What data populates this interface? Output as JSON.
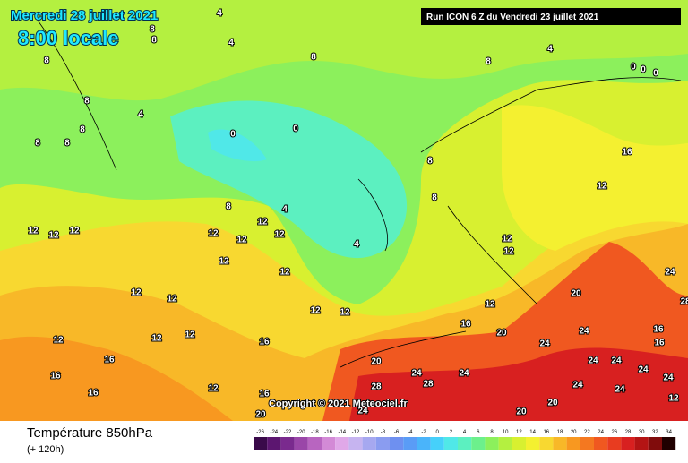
{
  "map": {
    "date_title": "Mercredi 28 juillet 2021",
    "time_title": "8:00 locale",
    "run_label": "Run ICON 6 Z du Vendredi 23 juillet 2021",
    "copyright": "Copyright © 2021 Meteociel.fr",
    "field_title": "Température 850hPa",
    "lead_time": "(+ 120h)",
    "contour_labels": [
      4,
      4,
      8,
      8,
      8,
      8,
      4,
      8,
      8,
      8,
      8,
      8,
      4,
      0,
      0,
      0,
      0,
      0,
      8,
      8,
      4,
      4,
      8,
      16,
      12,
      12,
      12,
      12,
      12,
      12,
      12,
      12,
      12,
      12,
      12,
      12,
      12,
      12,
      12,
      12,
      12,
      16,
      12,
      12,
      12,
      16,
      16,
      16,
      16,
      12,
      16,
      20,
      20,
      24,
      24,
      20,
      24,
      24,
      28,
      28,
      24,
      20,
      20,
      20,
      24,
      24,
      24,
      24,
      24,
      24,
      24,
      16,
      16,
      28,
      12
    ],
    "scale": {
      "values": [
        -26,
        -24,
        -22,
        -20,
        -18,
        -16,
        -14,
        -12,
        -10,
        -8,
        -6,
        -4,
        -2,
        0,
        2,
        4,
        6,
        8,
        10,
        12,
        14,
        16,
        18,
        20,
        22,
        24,
        26,
        28,
        30,
        32,
        34
      ],
      "colors": [
        "#3a0a4a",
        "#5c1670",
        "#7a2a8e",
        "#9a46a8",
        "#b865c0",
        "#d38ad6",
        "#e0a8e8",
        "#c6b4f0",
        "#a6a8f0",
        "#8a9cf0",
        "#6e90f0",
        "#5a9cf6",
        "#4ab4fa",
        "#46d0fa",
        "#50e8e8",
        "#5cf0c0",
        "#6cf08c",
        "#8cf05c",
        "#b4f040",
        "#d8f030",
        "#f4f030",
        "#f8d830",
        "#f8b828",
        "#f89820",
        "#f47820",
        "#f05820",
        "#e83c20",
        "#d82020",
        "#b41414",
        "#800c0c",
        "#200000"
      ]
    }
  }
}
